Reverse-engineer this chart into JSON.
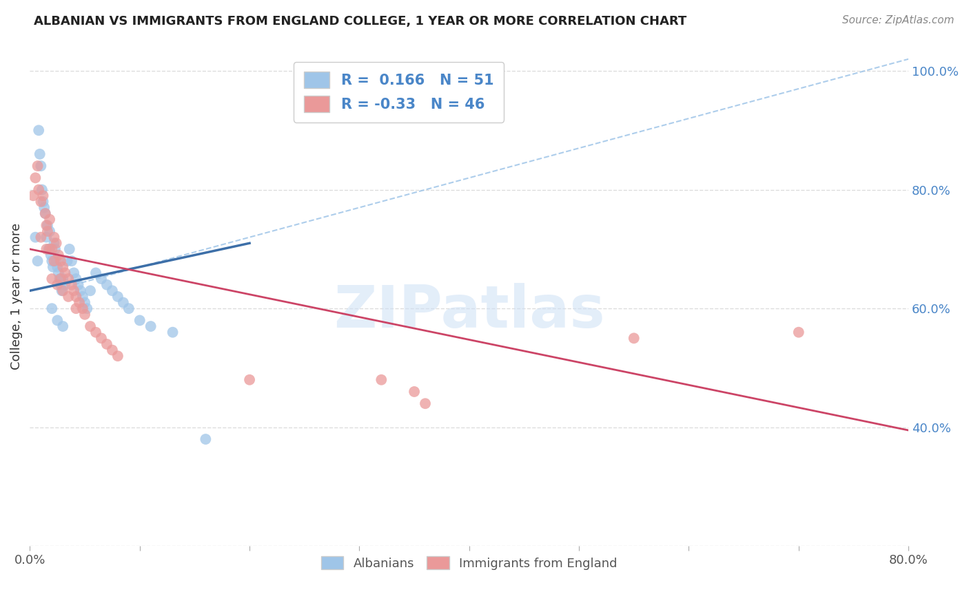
{
  "title": "ALBANIAN VS IMMIGRANTS FROM ENGLAND COLLEGE, 1 YEAR OR MORE CORRELATION CHART",
  "source": "Source: ZipAtlas.com",
  "ylabel": "College, 1 year or more",
  "xlim": [
    0.0,
    0.8
  ],
  "ylim": [
    0.2,
    1.04
  ],
  "blue_color": "#9fc5e8",
  "pink_color": "#ea9999",
  "blue_line_color": "#3d6fa8",
  "pink_line_color": "#cc4466",
  "dashed_line_color": "#9fc5e8",
  "blue_R": 0.166,
  "blue_N": 51,
  "pink_R": -0.33,
  "pink_N": 46,
  "legend_text_color": "#4a86c8",
  "blue_scatter_x": [
    0.005,
    0.007,
    0.008,
    0.009,
    0.01,
    0.011,
    0.012,
    0.013,
    0.014,
    0.015,
    0.016,
    0.017,
    0.018,
    0.019,
    0.02,
    0.021,
    0.022,
    0.023,
    0.024,
    0.025,
    0.026,
    0.027,
    0.028,
    0.029,
    0.03,
    0.032,
    0.034,
    0.036,
    0.038,
    0.04,
    0.042,
    0.044,
    0.046,
    0.048,
    0.05,
    0.052,
    0.055,
    0.06,
    0.065,
    0.07,
    0.075,
    0.08,
    0.085,
    0.09,
    0.1,
    0.11,
    0.13,
    0.16,
    0.02,
    0.025,
    0.03
  ],
  "blue_scatter_y": [
    0.72,
    0.68,
    0.9,
    0.86,
    0.84,
    0.8,
    0.78,
    0.77,
    0.76,
    0.72,
    0.74,
    0.7,
    0.73,
    0.69,
    0.68,
    0.67,
    0.71,
    0.7,
    0.68,
    0.67,
    0.66,
    0.65,
    0.64,
    0.63,
    0.65,
    0.64,
    0.68,
    0.7,
    0.68,
    0.66,
    0.65,
    0.64,
    0.63,
    0.62,
    0.61,
    0.6,
    0.63,
    0.66,
    0.65,
    0.64,
    0.63,
    0.62,
    0.61,
    0.6,
    0.58,
    0.57,
    0.56,
    0.38,
    0.6,
    0.58,
    0.57
  ],
  "pink_scatter_x": [
    0.003,
    0.005,
    0.007,
    0.008,
    0.01,
    0.012,
    0.014,
    0.015,
    0.016,
    0.018,
    0.02,
    0.022,
    0.024,
    0.026,
    0.028,
    0.03,
    0.032,
    0.035,
    0.038,
    0.04,
    0.042,
    0.045,
    0.048,
    0.05,
    0.055,
    0.06,
    0.065,
    0.07,
    0.075,
    0.08,
    0.01,
    0.015,
    0.02,
    0.025,
    0.03,
    0.018,
    0.022,
    0.028,
    0.035,
    0.042,
    0.2,
    0.32,
    0.35,
    0.36,
    0.55,
    0.7
  ],
  "pink_scatter_y": [
    0.79,
    0.82,
    0.84,
    0.8,
    0.78,
    0.79,
    0.76,
    0.74,
    0.73,
    0.75,
    0.7,
    0.72,
    0.71,
    0.69,
    0.68,
    0.67,
    0.66,
    0.65,
    0.64,
    0.63,
    0.62,
    0.61,
    0.6,
    0.59,
    0.57,
    0.56,
    0.55,
    0.54,
    0.53,
    0.52,
    0.72,
    0.7,
    0.65,
    0.64,
    0.63,
    0.7,
    0.68,
    0.65,
    0.62,
    0.6,
    0.48,
    0.48,
    0.46,
    0.44,
    0.55,
    0.56
  ],
  "blue_line_x": [
    0.0,
    0.2
  ],
  "blue_line_y": [
    0.63,
    0.71
  ],
  "pink_line_x": [
    0.0,
    0.8
  ],
  "pink_line_y": [
    0.7,
    0.395
  ],
  "diag_line_x": [
    0.04,
    0.8
  ],
  "diag_line_y": [
    0.64,
    1.02
  ],
  "grid_color": "#dddddd",
  "background_color": "#ffffff"
}
